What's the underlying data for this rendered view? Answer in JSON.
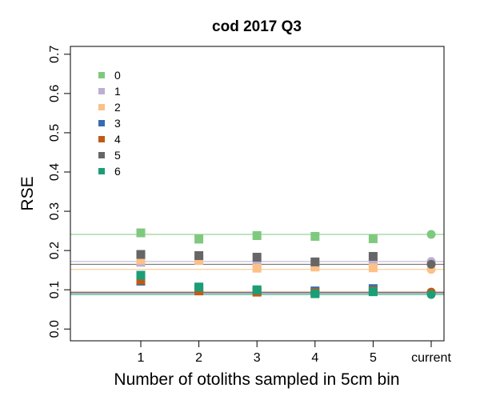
{
  "chart_data": {
    "type": "scatter",
    "title": "cod 2017 Q3",
    "xlabel": "Number of otoliths sampled in 5cm bin",
    "ylabel": "RSE",
    "categories": [
      "1",
      "2",
      "3",
      "4",
      "5",
      "current"
    ],
    "yticks": [
      "0.0",
      "0.1",
      "0.2",
      "0.3",
      "0.4",
      "0.5",
      "0.6",
      "0.7"
    ],
    "ylim": [
      -0.03,
      0.72
    ],
    "legend_position": "top-left",
    "series": [
      {
        "name": "0",
        "color": "#7fc97f",
        "values": [
          0.245,
          0.229,
          0.238,
          0.236,
          0.23,
          0.241
        ],
        "current_line": 0.241
      },
      {
        "name": "1",
        "color": "#beaed4",
        "values": [
          0.17,
          0.177,
          0.165,
          0.165,
          0.168,
          0.172
        ],
        "current_line": 0.172
      },
      {
        "name": "2",
        "color": "#fdc086",
        "values": [
          0.176,
          0.175,
          0.155,
          0.158,
          0.156,
          0.152
        ],
        "current_line": 0.152
      },
      {
        "name": "3",
        "color": "#386cb0",
        "values": [
          0.122,
          0.104,
          0.097,
          0.097,
          0.103,
          0.092
        ],
        "current_line": 0.092
      },
      {
        "name": "4",
        "color": "#bf5b17",
        "values": [
          0.125,
          0.097,
          0.094,
          0.093,
          0.097,
          0.094
        ],
        "current_line": 0.094
      },
      {
        "name": "5",
        "color": "#666666",
        "values": [
          0.19,
          0.187,
          0.183,
          0.171,
          0.185,
          0.165
        ],
        "current_line": 0.165
      },
      {
        "name": "6",
        "color": "#1b9e77",
        "values": [
          0.137,
          0.107,
          0.1,
          0.09,
          0.095,
          0.088
        ],
        "current_line": 0.088
      }
    ]
  }
}
